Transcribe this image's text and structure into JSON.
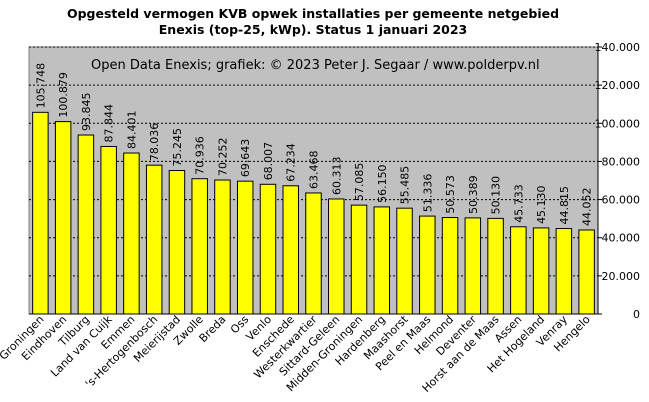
{
  "chart_data": {
    "type": "bar",
    "title_line1": "Opgesteld vermogen KVB opwek installaties per gemeente netgebied",
    "title_line2": "Enexis (top-25, kWp). Status 1 januari 2023",
    "annotation": "Open Data Enexis;  grafiek:  © 2023  Peter J. Segaar / www.polderpv.nl",
    "categories": [
      "Groningen",
      "Eindhoven",
      "Tilburg",
      "Land van Cuijk",
      "Emmen",
      "'s-Hertogenbosch",
      "Meierijstad",
      "Zwolle",
      "Breda",
      "Oss",
      "Venlo",
      "Enschede",
      "Westerkwartier",
      "Sittard-Geleen",
      "Midden-Groningen",
      "Hardenberg",
      "Maashorst",
      "Peel en Maas",
      "Helmond",
      "Deventer",
      "Horst aan de Maas",
      "Assen",
      "Het Hogeland",
      "Venray",
      "Hengelo"
    ],
    "values": [
      105748,
      100879,
      93845,
      87844,
      84401,
      78036,
      75245,
      70936,
      70252,
      69643,
      68007,
      67234,
      63468,
      60313,
      57085,
      56150,
      55485,
      51336,
      50573,
      50389,
      50130,
      45733,
      45130,
      44815,
      44052
    ],
    "value_labels": [
      "105.748",
      "100.879",
      "93.845",
      "87.844",
      "84.401",
      "78.036",
      "75.245",
      "70.936",
      "70.252",
      "69.643",
      "68.007",
      "67.234",
      "63.468",
      "60.313",
      "57.085",
      "56.150",
      "55.485",
      "51.336",
      "50.573",
      "50.389",
      "50.130",
      "45.733",
      "45.130",
      "44.815",
      "44.052"
    ],
    "ylim": [
      0,
      140000
    ],
    "yticks": [
      0,
      20000,
      40000,
      60000,
      80000,
      100000,
      120000,
      140000
    ],
    "ytick_labels": [
      "0",
      "20.000",
      "40.000",
      "60.000",
      "80.000",
      "100.000",
      "120.000",
      "140.000"
    ],
    "y_axis_side": "right",
    "grid": true,
    "colors": {
      "bar": "#ffff00",
      "bar_edge": "#000000",
      "plot_bg": "#c0c0c0",
      "grid": "#000000"
    }
  }
}
